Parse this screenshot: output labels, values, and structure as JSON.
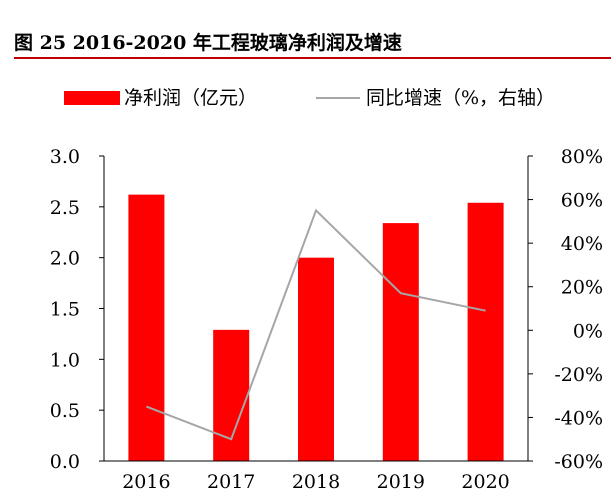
{
  "figure": {
    "title": "图 25  2016-2020 年工程玻璃净利润及增速"
  },
  "chart_data": {
    "type": "bar",
    "categories": [
      "2016",
      "2017",
      "2018",
      "2019",
      "2020"
    ],
    "series": [
      {
        "name": "净利润（亿元）",
        "kind": "bar",
        "axis": "left",
        "values": [
          2.62,
          1.29,
          2.0,
          2.34,
          2.54
        ],
        "color": "#ff0000"
      },
      {
        "name": "同比增速（%，右轴）",
        "kind": "line",
        "axis": "right",
        "values": [
          -35,
          -50,
          55,
          17,
          9
        ],
        "color": "#a6a6a6"
      }
    ],
    "y_left": {
      "lim": [
        0,
        3
      ],
      "ticks": [
        "0.0",
        "0.5",
        "1.0",
        "1.5",
        "2.0",
        "2.5",
        "3.0"
      ]
    },
    "y_right": {
      "lim": [
        -60,
        80
      ],
      "ticks": [
        "-60%",
        "-40%",
        "-20%",
        "0%",
        "20%",
        "40%",
        "60%",
        "80%"
      ]
    },
    "legend_position": "top",
    "grid": false,
    "axis_color": "#000000"
  }
}
